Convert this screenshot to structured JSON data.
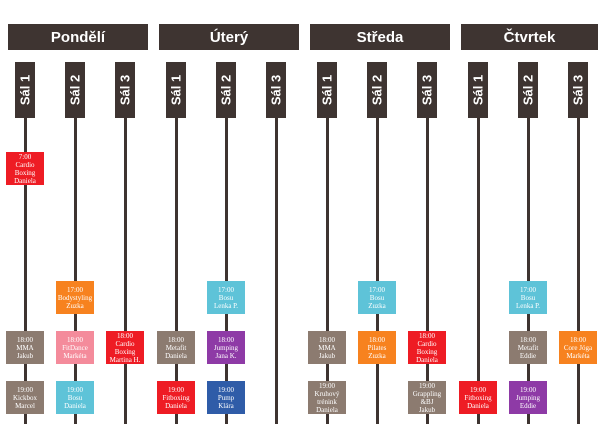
{
  "days": [
    {
      "name": "Pondělí",
      "rooms": [
        {
          "name": "Sál 1",
          "classes": [
            {
              "time": "7:00",
              "name": "Cardio Boxing",
              "instructor": "Daniela",
              "color": "#ee1c24"
            },
            {
              "time": "18:00",
              "name": "MMA",
              "instructor": "Jakub",
              "color": "#8c7b70"
            },
            {
              "time": "19:00",
              "name": "Kickbox",
              "instructor": "Marcel",
              "color": "#8c7b70"
            }
          ]
        },
        {
          "name": "Sál 2",
          "classes": [
            {
              "time": "17:00",
              "name": "Bodystyling",
              "instructor": "Zuzka",
              "color": "#f7821f"
            },
            {
              "time": "18:00",
              "name": "FitDance",
              "instructor": "Markéta",
              "color": "#f48b9b"
            },
            {
              "time": "19:00",
              "name": "Bosu",
              "instructor": "Daniela",
              "color": "#5ec3d8"
            }
          ]
        },
        {
          "name": "Sál 3",
          "classes": [
            {
              "time": "18:00",
              "name": "Cardio Boxing",
              "instructor": "Martina H.",
              "color": "#ee1c24"
            }
          ]
        }
      ]
    },
    {
      "name": "Úterý",
      "rooms": [
        {
          "name": "Sál 1",
          "classes": [
            {
              "time": "18:00",
              "name": "Metafit",
              "instructor": "Daniela",
              "color": "#8c7b70"
            },
            {
              "time": "19:00",
              "name": "Fitboxing",
              "instructor": "Daniela",
              "color": "#ee1c24"
            }
          ]
        },
        {
          "name": "Sál 2",
          "classes": [
            {
              "time": "17:00",
              "name": "Bosu",
              "instructor": "Lenka P.",
              "color": "#5ec3d8"
            },
            {
              "time": "18:00",
              "name": "Jumping",
              "instructor": "Jana K.",
              "color": "#8e3aa6"
            },
            {
              "time": "19:00",
              "name": "Pump",
              "instructor": "Klára",
              "color": "#2f5ca8"
            }
          ]
        },
        {
          "name": "Sál 3",
          "classes": []
        }
      ]
    },
    {
      "name": "Středa",
      "rooms": [
        {
          "name": "Sál 1",
          "classes": [
            {
              "time": "18:00",
              "name": "MMA",
              "instructor": "Jakub",
              "color": "#8c7b70"
            },
            {
              "time": "19:00",
              "name": "Kruhový trénink",
              "instructor": "Daniela",
              "color": "#8c7b70"
            }
          ]
        },
        {
          "name": "Sál 2",
          "classes": [
            {
              "time": "17:00",
              "name": "Bosu",
              "instructor": "Zuzka",
              "color": "#5ec3d8"
            },
            {
              "time": "18:00",
              "name": "Pilates",
              "instructor": "Zuzka",
              "color": "#f7821f"
            }
          ]
        },
        {
          "name": "Sál 3",
          "classes": [
            {
              "time": "18:00",
              "name": "Cardio Boxing",
              "instructor": "Daniela",
              "color": "#ee1c24"
            },
            {
              "time": "19:00",
              "name": "Grappling &BJ",
              "instructor": "Jakub",
              "color": "#8c7b70"
            }
          ]
        }
      ]
    },
    {
      "name": "Čtvrtek",
      "rooms": [
        {
          "name": "Sál 1",
          "classes": [
            {
              "time": "19:00",
              "name": "Fitboxing",
              "instructor": "Daniela",
              "color": "#ee1c24"
            }
          ]
        },
        {
          "name": "Sál 2",
          "classes": [
            {
              "time": "17:00",
              "name": "Bosu",
              "instructor": "Lenka P.",
              "color": "#5ec3d8"
            },
            {
              "time": "18:00",
              "name": "Metafit",
              "instructor": "Eddie",
              "color": "#8c7b70"
            },
            {
              "time": "19:00",
              "name": "Jumping",
              "instructor": "Eddie",
              "color": "#8e3aa6"
            }
          ]
        },
        {
          "name": "Sál 3",
          "classes": [
            {
              "time": "18:00",
              "name": "Core Jóga",
              "instructor": "Markéta",
              "color": "#f7821f"
            }
          ]
        }
      ]
    }
  ]
}
